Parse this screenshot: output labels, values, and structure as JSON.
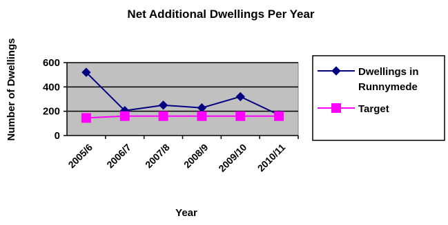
{
  "chart_data": {
    "type": "line",
    "title": "Net Additional Dwellings Per Year",
    "xlabel": "Year",
    "ylabel": "Number of Dwellings",
    "categories": [
      "2005/6",
      "2006/7",
      "2007/8",
      "2008/9",
      "2009/10",
      "2010/11"
    ],
    "ylim": [
      0,
      600
    ],
    "yticks": [
      0,
      200,
      400,
      600
    ],
    "grid": true,
    "legend_position": "right",
    "plot_background": "#c0c0c0",
    "series": [
      {
        "name": "Dwellings in Runnymede",
        "values": [
          520,
          205,
          250,
          228,
          320,
          170
        ],
        "color": "#000080",
        "marker": "diamond"
      },
      {
        "name": "Target",
        "values": [
          145,
          160,
          160,
          160,
          160,
          160
        ],
        "color": "#ff00ff",
        "marker": "square"
      }
    ]
  }
}
